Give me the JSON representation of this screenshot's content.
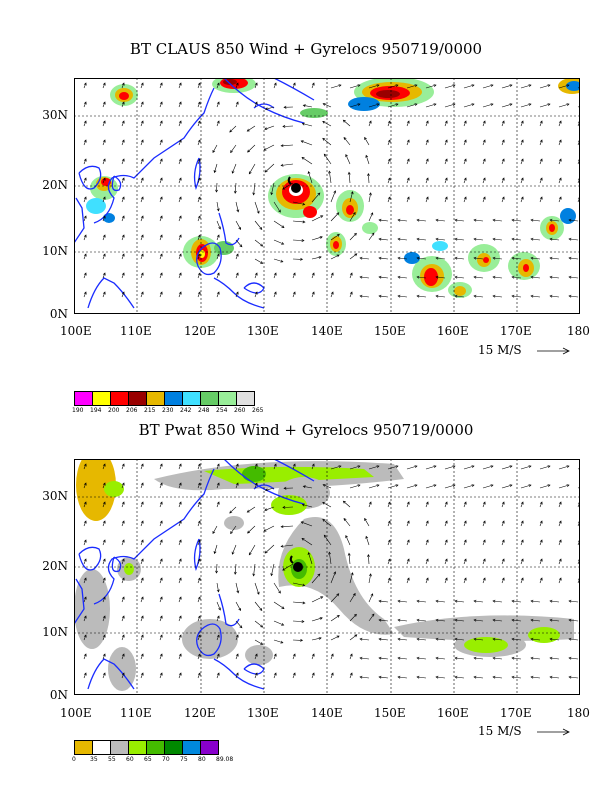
{
  "panels": [
    {
      "title": "BT CLAUS 850 Wind + Gyrelocs 950719/0000",
      "lat_labels": [
        "30N",
        "20N",
        "10N",
        "0N"
      ],
      "lon_labels": [
        "100E",
        "110E",
        "120E",
        "130E",
        "140E",
        "150E",
        "160E",
        "170E",
        "180"
      ],
      "scale_label": "15 M/S",
      "colorbar": {
        "colors": [
          "#ff00ff",
          "#ffff00",
          "#ff0000",
          "#990000",
          "#e6b800",
          "#0080e0",
          "#40e0ff",
          "#66cc66",
          "#99ee99",
          "#e0e0e0"
        ],
        "labels": [
          "190",
          "194",
          "200",
          "206",
          "215",
          "230",
          "242",
          "248",
          "254",
          "260",
          "265"
        ]
      }
    },
    {
      "title": "BT Pwat 850 Wind + Gyrelocs 950719/0000",
      "lat_labels": [
        "30N",
        "20N",
        "10N",
        "0N"
      ],
      "lon_labels": [
        "100E",
        "110E",
        "120E",
        "130E",
        "140E",
        "150E",
        "160E",
        "170E",
        "180"
      ],
      "scale_label": "15 M/S",
      "colorbar": {
        "colors": [
          "#e6b800",
          "#ffffff",
          "#bbbbbb",
          "#99ee00",
          "#44bb00",
          "#008800",
          "#0088dd",
          "#8800cc"
        ],
        "labels": [
          "0",
          "35",
          "55",
          "60",
          "65",
          "70",
          "75",
          "80",
          "89.08"
        ]
      }
    }
  ]
}
